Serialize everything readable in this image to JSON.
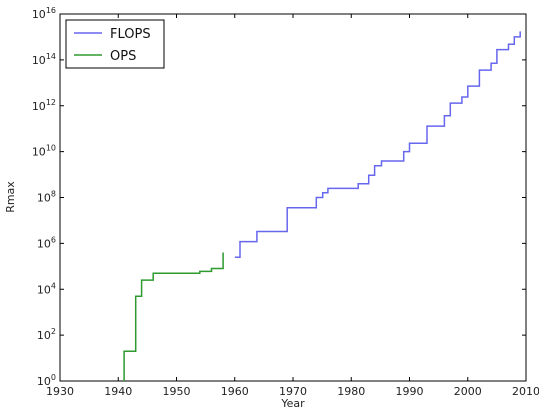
{
  "chart_data": {
    "type": "line",
    "title": "",
    "xlabel": "Year",
    "ylabel": "Rmax",
    "xlim": [
      1930,
      2010
    ],
    "ylim_exponent": [
      0,
      16
    ],
    "yscale": "log",
    "grid": false,
    "legend_position": "top-left",
    "x_ticks": [
      "1930",
      "1940",
      "1950",
      "1960",
      "1970",
      "1980",
      "1990",
      "2000",
      "2010"
    ],
    "y_tick_base": "10",
    "y_tick_exponents": [
      "0",
      "2",
      "4",
      "6",
      "8",
      "10",
      "12",
      "14",
      "16"
    ],
    "series": [
      {
        "name": "FLOPS",
        "color": "#6666ee",
        "points": [
          [
            1960.0,
            250000.0
          ],
          [
            1960.9,
            250000.0
          ],
          [
            1960.9,
            1200000.0
          ],
          [
            1963.8,
            1200000.0
          ],
          [
            1963.8,
            3300000.0
          ],
          [
            1969.0,
            3300000.0
          ],
          [
            1969.0,
            36000000.0
          ],
          [
            1974.0,
            36000000.0
          ],
          [
            1974.0,
            100000000.0
          ],
          [
            1975.1,
            100000000.0
          ],
          [
            1975.1,
            160000000.0
          ],
          [
            1976.0,
            160000000.0
          ],
          [
            1976.0,
            250000000.0
          ],
          [
            1981.2,
            250000000.0
          ],
          [
            1981.2,
            400000000.0
          ],
          [
            1983.0,
            400000000.0
          ],
          [
            1983.0,
            940000000.0
          ],
          [
            1984.0,
            940000000.0
          ],
          [
            1984.0,
            2400000000.0
          ],
          [
            1985.2,
            2400000000.0
          ],
          [
            1985.2,
            3900000000.0
          ],
          [
            1989.0,
            3900000000.0
          ],
          [
            1989.0,
            10000000000.0
          ],
          [
            1990.0,
            10000000000.0
          ],
          [
            1990.0,
            23000000000.0
          ],
          [
            1993.0,
            23000000000.0
          ],
          [
            1993.0,
            130000000000.0
          ],
          [
            1996.0,
            130000000000.0
          ],
          [
            1996.0,
            370000000000.0
          ],
          [
            1997.0,
            370000000000.0
          ],
          [
            1997.0,
            1300000000000.0
          ],
          [
            1999.0,
            1300000000000.0
          ],
          [
            1999.0,
            2400000000000.0
          ],
          [
            2000.0,
            2400000000000.0
          ],
          [
            2000.0,
            7200000000000.0
          ],
          [
            2002.0,
            7200000000000.0
          ],
          [
            2002.0,
            36000000000000.0
          ],
          [
            2004.0,
            36000000000000.0
          ],
          [
            2004.0,
            71000000000000.0
          ],
          [
            2005.0,
            71000000000000.0
          ],
          [
            2005.0,
            280000000000000.0
          ],
          [
            2007.0,
            280000000000000.0
          ],
          [
            2007.0,
            480000000000000.0
          ],
          [
            2008.0,
            480000000000000.0
          ],
          [
            2008.0,
            1000000000000000.0
          ],
          [
            2009.0,
            1000000000000000.0
          ],
          [
            2009.0,
            1750000000000000.0
          ]
        ]
      },
      {
        "name": "OPS",
        "color": "#2e9a2e",
        "points": [
          [
            1941.0,
            1.0
          ],
          [
            1941.0,
            20
          ],
          [
            1943.0,
            20
          ],
          [
            1943.0,
            5000.0
          ],
          [
            1944.0,
            5000.0
          ],
          [
            1944.0,
            25000.0
          ],
          [
            1946.0,
            25000.0
          ],
          [
            1946.0,
            50000.0
          ],
          [
            1954.0,
            50000.0
          ],
          [
            1954.0,
            60000.0
          ],
          [
            1956.0,
            60000.0
          ],
          [
            1956.0,
            80000.0
          ],
          [
            1958.0,
            80000.0
          ],
          [
            1958.0,
            400000.0
          ]
        ]
      }
    ]
  }
}
